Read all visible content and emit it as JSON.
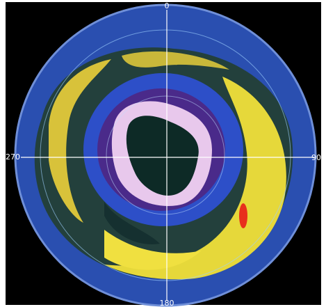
{
  "meridian_labels": {
    "top": "0",
    "right": "90",
    "bottom": "180",
    "left": "270"
  }
}
